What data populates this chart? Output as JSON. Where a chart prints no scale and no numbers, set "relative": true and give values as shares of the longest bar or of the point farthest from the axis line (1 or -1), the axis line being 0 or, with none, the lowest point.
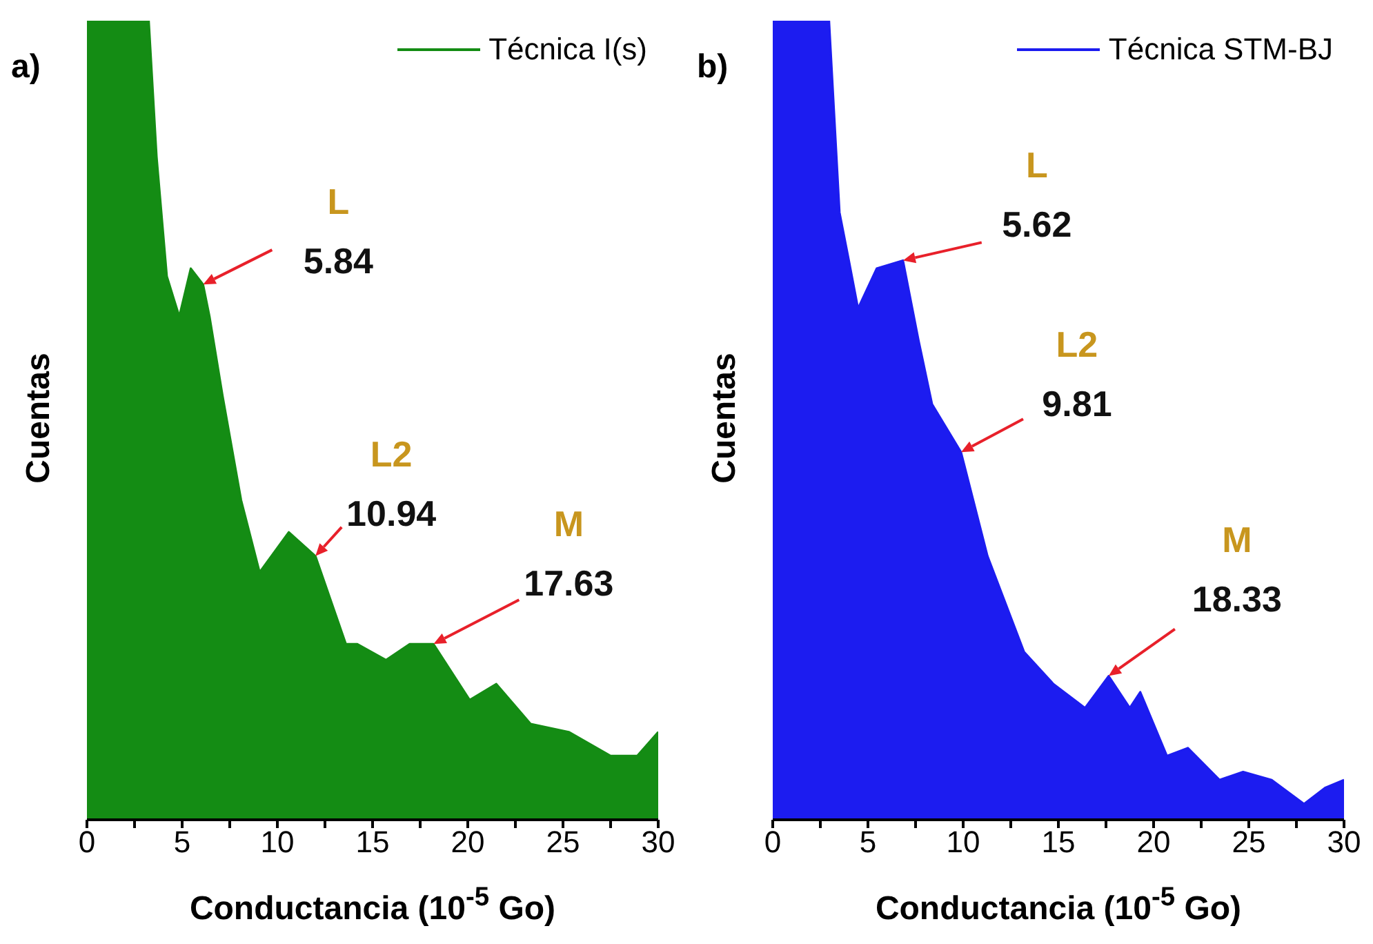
{
  "chart_data": [
    {
      "type": "area",
      "title": "a)",
      "xlabel": "Conductancia (10$^{-5}$ Go)",
      "ylabel": "Cuentas",
      "relative": true,
      "legend": "top right",
      "xlim": [
        0,
        30
      ],
      "xticks": [
        0,
        {
          "value": 2.5,
          "label": null
        },
        5,
        {
          "value": 7.5,
          "label": null
        },
        10,
        {
          "value": 12.5,
          "label": null
        },
        15,
        {
          "value": 17.5,
          "label": null
        },
        20,
        {
          "value": 22.5,
          "label": null
        },
        25,
        {
          "value": 27.5,
          "label": null
        },
        30
      ],
      "series": [
        {
          "name": "Técnica I(s)",
          "color": "#148c14",
          "x": [
            0,
            3.25,
            3.66,
            4.2,
            4.85,
            5.45,
            6.1,
            6.44,
            7.13,
            8.1,
            9.07,
            10.6,
            12.0,
            13.6,
            14.2,
            15.7,
            16.95,
            18.2,
            20.1,
            21.5,
            23.3,
            25.3,
            27.5,
            28.9,
            30
          ],
          "values": [
            1,
            1,
            0.83,
            0.68,
            0.63,
            0.69,
            0.67,
            0.63,
            0.53,
            0.4,
            0.31,
            0.36,
            0.33,
            0.22,
            0.22,
            0.2,
            0.22,
            0.22,
            0.15,
            0.17,
            0.12,
            0.11,
            0.08,
            0.08,
            0.11
          ]
        }
      ],
      "annotations": [
        {
          "text": "L\n5.84",
          "x": 6.1,
          "y": 0.67
        },
        {
          "text": "L2\n10.94",
          "x": 12.0,
          "y": 0.33
        },
        {
          "text": "M\n17.63",
          "x": 18.2,
          "y": 0.22
        }
      ]
    },
    {
      "type": "area",
      "title": "b)",
      "xlabel": "Conductancia (10$^{-5}$ Go)",
      "ylabel": "Cuentas",
      "relative": true,
      "legend": "top right",
      "xlim": [
        0,
        30
      ],
      "xticks": [
        0,
        {
          "value": 2.5,
          "label": null
        },
        5,
        {
          "value": 7.5,
          "label": null
        },
        10,
        {
          "value": 12.5,
          "label": null
        },
        15,
        {
          "value": 17.5,
          "label": null
        },
        20,
        {
          "value": 22.5,
          "label": null
        },
        25,
        {
          "value": 27.5,
          "label": null
        },
        30
      ],
      "series": [
        {
          "name": "Técnica STM-BJ",
          "color": "#1c1cf0",
          "x": [
            0,
            2.96,
            3.51,
            4.0,
            4.48,
            5.46,
            6.84,
            7.66,
            8.37,
            9.89,
            11.28,
            13.2,
            14.74,
            16.4,
            17.64,
            18.75,
            19.3,
            20.7,
            21.8,
            23.46,
            24.7,
            26.2,
            27.9,
            29.0,
            30
          ],
          "values": [
            1,
            1,
            0.76,
            0.7,
            0.64,
            0.69,
            0.7,
            0.6,
            0.52,
            0.46,
            0.33,
            0.21,
            0.17,
            0.14,
            0.18,
            0.14,
            0.16,
            0.08,
            0.09,
            0.05,
            0.06,
            0.05,
            0.02,
            0.04,
            0.05
          ]
        }
      ],
      "annotations": [
        {
          "text": "L\n5.62",
          "x": 6.84,
          "y": 0.7
        },
        {
          "text": "L2\n9.81",
          "x": 9.89,
          "y": 0.46
        },
        {
          "text": "M\n18.33",
          "x": 17.64,
          "y": 0.18
        }
      ]
    }
  ]
}
